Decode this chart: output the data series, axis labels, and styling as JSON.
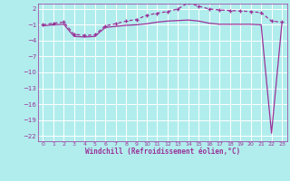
{
  "xlabel": "Windchill (Refroidissement éolien,°C)",
  "background_color": "#b2eded",
  "grid_color": "#ffffff",
  "line_color": "#993399",
  "x": [
    0,
    1,
    2,
    3,
    4,
    5,
    6,
    7,
    8,
    9,
    10,
    11,
    12,
    13,
    14,
    15,
    16,
    17,
    18,
    19,
    20,
    21,
    22,
    23
  ],
  "y_upper": [
    -1.0,
    -0.7,
    -0.5,
    -2.8,
    -3.0,
    -2.9,
    -1.2,
    -0.8,
    -0.3,
    0.0,
    0.8,
    1.2,
    1.5,
    2.0,
    3.2,
    2.5,
    2.0,
    1.8,
    1.7,
    1.6,
    1.5,
    1.3,
    -0.3,
    -0.5
  ],
  "y_lower": [
    -1.2,
    -1.0,
    -0.9,
    -3.2,
    -3.3,
    -3.2,
    -1.5,
    -1.3,
    -1.1,
    -1.0,
    -0.8,
    -0.5,
    -0.3,
    -0.2,
    -0.1,
    -0.3,
    -0.7,
    -0.9,
    -0.9,
    -0.9,
    -0.9,
    -1.0,
    -21.5,
    -0.7
  ],
  "ylim": [
    -23,
    3
  ],
  "yticks": [
    2,
    -1,
    -4,
    -7,
    -10,
    -13,
    -16,
    -19,
    -22
  ],
  "xlim": [
    -0.5,
    23.5
  ],
  "xticks": [
    0,
    1,
    2,
    3,
    4,
    5,
    6,
    7,
    8,
    9,
    10,
    11,
    12,
    13,
    14,
    15,
    16,
    17,
    18,
    19,
    20,
    21,
    22,
    23
  ]
}
